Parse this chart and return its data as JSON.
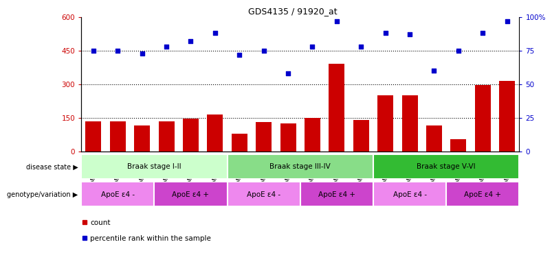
{
  "title": "GDS4135 / 91920_at",
  "samples": [
    "GSM735097",
    "GSM735098",
    "GSM735099",
    "GSM735094",
    "GSM735095",
    "GSM735096",
    "GSM735103",
    "GSM735104",
    "GSM735105",
    "GSM735100",
    "GSM735101",
    "GSM735102",
    "GSM735109",
    "GSM735110",
    "GSM735111",
    "GSM735106",
    "GSM735107",
    "GSM735108"
  ],
  "counts": [
    135,
    135,
    115,
    135,
    145,
    165,
    80,
    130,
    125,
    150,
    390,
    140,
    250,
    250,
    115,
    55,
    295,
    315
  ],
  "percentiles": [
    75,
    75,
    73,
    78,
    82,
    88,
    72,
    75,
    58,
    78,
    97,
    78,
    88,
    87,
    60,
    75,
    88,
    97
  ],
  "ylim_left": [
    0,
    600
  ],
  "ylim_right": [
    0,
    100
  ],
  "yticks_left": [
    0,
    150,
    300,
    450,
    600
  ],
  "yticks_right": [
    0,
    25,
    50,
    75,
    100
  ],
  "bar_color": "#cc0000",
  "dot_color": "#0000cc",
  "disease_stages": [
    {
      "label": "Braak stage I-II",
      "start": 0,
      "end": 6,
      "color": "#ccffcc"
    },
    {
      "label": "Braak stage III-IV",
      "start": 6,
      "end": 12,
      "color": "#88dd88"
    },
    {
      "label": "Braak stage V-VI",
      "start": 12,
      "end": 18,
      "color": "#33bb33"
    }
  ],
  "genotype_groups": [
    {
      "label": "ApoE ε4 -",
      "start": 0,
      "end": 3,
      "color": "#ee88ee"
    },
    {
      "label": "ApoE ε4 +",
      "start": 3,
      "end": 6,
      "color": "#cc44cc"
    },
    {
      "label": "ApoE ε4 -",
      "start": 6,
      "end": 9,
      "color": "#ee88ee"
    },
    {
      "label": "ApoE ε4 +",
      "start": 9,
      "end": 12,
      "color": "#cc44cc"
    },
    {
      "label": "ApoE ε4 -",
      "start": 12,
      "end": 15,
      "color": "#ee88ee"
    },
    {
      "label": "ApoE ε4 +",
      "start": 15,
      "end": 18,
      "color": "#cc44cc"
    }
  ],
  "legend_count_label": "count",
  "legend_percentile_label": "percentile rank within the sample",
  "disease_state_label": "disease state",
  "genotype_label": "genotype/variation",
  "right_yaxis_color": "#0000cc",
  "left_yaxis_color": "#cc0000",
  "ytick_labels_left": [
    "0",
    "150",
    "300",
    "450",
    "600"
  ],
  "ytick_labels_right": [
    "0",
    "25",
    "50",
    "75",
    "100%"
  ]
}
